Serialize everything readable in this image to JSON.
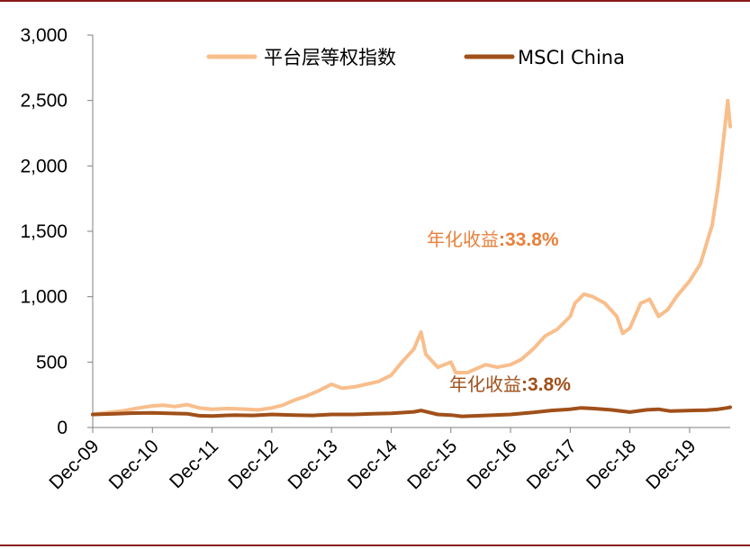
{
  "colors": {
    "frame": "#8B1A1A",
    "platform": "#F8BE8C",
    "msci": "#A0501A",
    "axis": "#000000",
    "annotation_platform": "#E8803A",
    "annotation_msci": "#A0501A"
  },
  "chart_data": {
    "type": "line",
    "title": "",
    "xlabel": "",
    "ylabel": "",
    "ylim": [
      0,
      3000
    ],
    "yticks": [
      0,
      500,
      1000,
      1500,
      2000,
      2500,
      3000
    ],
    "ytick_labels": [
      "0",
      "500",
      "1,000",
      "1,500",
      "2,000",
      "2,500",
      "3,000"
    ],
    "xlim": [
      2009.92,
      2020.6
    ],
    "xticks": [
      {
        "x": 2009.92,
        "label": "Dec-09"
      },
      {
        "x": 2010.92,
        "label": "Dec-10"
      },
      {
        "x": 2011.92,
        "label": "Dec-11"
      },
      {
        "x": 2012.92,
        "label": "Dec-12"
      },
      {
        "x": 2013.92,
        "label": "Dec-13"
      },
      {
        "x": 2014.92,
        "label": "Dec-14"
      },
      {
        "x": 2015.92,
        "label": "Dec-15"
      },
      {
        "x": 2016.92,
        "label": "Dec-16"
      },
      {
        "x": 2017.92,
        "label": "Dec-17"
      },
      {
        "x": 2018.92,
        "label": "Dec-18"
      },
      {
        "x": 2019.92,
        "label": "Dec-19"
      }
    ],
    "legend_position": "top",
    "grid": false,
    "series": [
      {
        "name": "平台层等权指数",
        "color": "#F8BE8C",
        "points": [
          [
            2009.92,
            100
          ],
          [
            2010.1,
            110
          ],
          [
            2010.4,
            125
          ],
          [
            2010.7,
            150
          ],
          [
            2010.92,
            165
          ],
          [
            2011.1,
            170
          ],
          [
            2011.3,
            160
          ],
          [
            2011.5,
            175
          ],
          [
            2011.7,
            150
          ],
          [
            2011.92,
            140
          ],
          [
            2012.2,
            145
          ],
          [
            2012.5,
            140
          ],
          [
            2012.7,
            135
          ],
          [
            2012.92,
            150
          ],
          [
            2013.1,
            170
          ],
          [
            2013.3,
            210
          ],
          [
            2013.5,
            240
          ],
          [
            2013.7,
            280
          ],
          [
            2013.92,
            330
          ],
          [
            2014.1,
            300
          ],
          [
            2014.3,
            310
          ],
          [
            2014.5,
            330
          ],
          [
            2014.7,
            350
          ],
          [
            2014.92,
            400
          ],
          [
            2015.1,
            500
          ],
          [
            2015.3,
            600
          ],
          [
            2015.42,
            730
          ],
          [
            2015.5,
            560
          ],
          [
            2015.7,
            460
          ],
          [
            2015.92,
            500
          ],
          [
            2016.0,
            420
          ],
          [
            2016.2,
            420
          ],
          [
            2016.5,
            480
          ],
          [
            2016.7,
            460
          ],
          [
            2016.92,
            480
          ],
          [
            2017.1,
            520
          ],
          [
            2017.3,
            600
          ],
          [
            2017.5,
            700
          ],
          [
            2017.7,
            750
          ],
          [
            2017.92,
            850
          ],
          [
            2018.0,
            950
          ],
          [
            2018.15,
            1020
          ],
          [
            2018.3,
            1000
          ],
          [
            2018.5,
            950
          ],
          [
            2018.7,
            850
          ],
          [
            2018.8,
            720
          ],
          [
            2018.92,
            760
          ],
          [
            2019.1,
            950
          ],
          [
            2019.25,
            980
          ],
          [
            2019.4,
            850
          ],
          [
            2019.55,
            900
          ],
          [
            2019.7,
            1000
          ],
          [
            2019.92,
            1120
          ],
          [
            2020.1,
            1250
          ],
          [
            2020.2,
            1400
          ],
          [
            2020.3,
            1550
          ],
          [
            2020.4,
            1850
          ],
          [
            2020.5,
            2250
          ],
          [
            2020.56,
            2500
          ],
          [
            2020.6,
            2300
          ]
        ]
      },
      {
        "name": "MSCI China",
        "color": "#A0501A",
        "points": [
          [
            2009.92,
            100
          ],
          [
            2010.3,
            105
          ],
          [
            2010.6,
            110
          ],
          [
            2010.92,
            112
          ],
          [
            2011.2,
            108
          ],
          [
            2011.5,
            105
          ],
          [
            2011.7,
            90
          ],
          [
            2011.92,
            88
          ],
          [
            2012.3,
            95
          ],
          [
            2012.6,
            92
          ],
          [
            2012.92,
            100
          ],
          [
            2013.3,
            95
          ],
          [
            2013.6,
            92
          ],
          [
            2013.92,
            100
          ],
          [
            2014.3,
            100
          ],
          [
            2014.6,
            105
          ],
          [
            2014.92,
            108
          ],
          [
            2015.3,
            120
          ],
          [
            2015.42,
            130
          ],
          [
            2015.7,
            100
          ],
          [
            2015.92,
            95
          ],
          [
            2016.1,
            85
          ],
          [
            2016.5,
            92
          ],
          [
            2016.92,
            100
          ],
          [
            2017.3,
            115
          ],
          [
            2017.6,
            130
          ],
          [
            2017.92,
            140
          ],
          [
            2018.1,
            150
          ],
          [
            2018.3,
            145
          ],
          [
            2018.6,
            135
          ],
          [
            2018.92,
            118
          ],
          [
            2019.2,
            135
          ],
          [
            2019.4,
            140
          ],
          [
            2019.6,
            125
          ],
          [
            2019.92,
            130
          ],
          [
            2020.2,
            132
          ],
          [
            2020.4,
            140
          ],
          [
            2020.55,
            150
          ],
          [
            2020.6,
            155
          ]
        ]
      }
    ],
    "annotations": [
      {
        "label": "年化收益",
        "sep": ":",
        "value": "33.8%",
        "series": "平台层等权指数"
      },
      {
        "label": "年化收益",
        "sep": ":",
        "value": "3.8%",
        "series": "MSCI China"
      }
    ]
  }
}
